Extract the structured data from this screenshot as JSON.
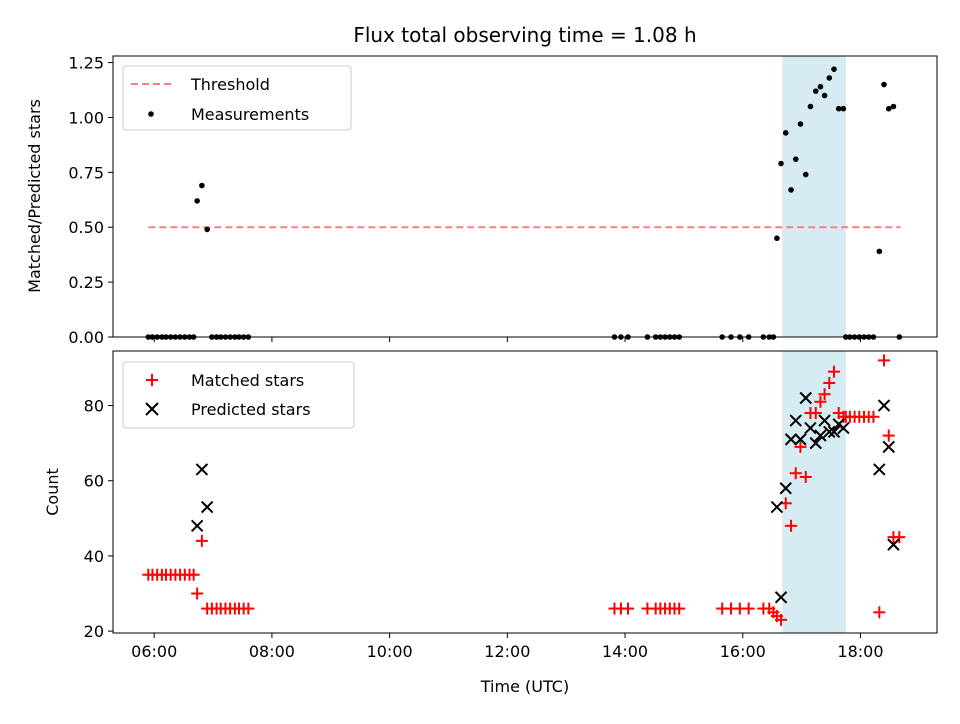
{
  "chart_data": [
    {
      "type": "scatter",
      "title": "Flux total observing time = 1.08 h",
      "xlabel": "",
      "ylabel": "Matched/Predicted stars",
      "ylim": [
        0,
        1.28
      ],
      "yticks": [
        "0.00",
        "0.25",
        "0.50",
        "0.75",
        "1.00",
        "1.25"
      ],
      "ytick_values": [
        0,
        0.25,
        0.5,
        0.75,
        1.0,
        1.25
      ],
      "legend_position": "upper-left",
      "highlight_span": {
        "start_hour": 16.67,
        "end_hour": 17.75,
        "color": "#add8e6"
      },
      "threshold": {
        "name": "Threshold",
        "value": 0.5,
        "x_start_hour": 5.9,
        "x_end_hour": 18.68,
        "color": "#ff7f7f",
        "style": "dashed"
      },
      "series": [
        {
          "name": "Measurements",
          "color": "#000000",
          "marker": "dot",
          "points": [
            [
              5.9,
              0
            ],
            [
              5.97,
              0
            ],
            [
              6.05,
              0
            ],
            [
              6.13,
              0
            ],
            [
              6.2,
              0
            ],
            [
              6.28,
              0
            ],
            [
              6.36,
              0
            ],
            [
              6.44,
              0
            ],
            [
              6.52,
              0
            ],
            [
              6.6,
              0
            ],
            [
              6.67,
              0
            ],
            [
              6.73,
              0.62
            ],
            [
              6.81,
              0.69
            ],
            [
              6.9,
              0.49
            ],
            [
              6.98,
              0
            ],
            [
              7.06,
              0
            ],
            [
              7.13,
              0
            ],
            [
              7.21,
              0
            ],
            [
              7.29,
              0
            ],
            [
              7.37,
              0
            ],
            [
              7.44,
              0
            ],
            [
              7.52,
              0
            ],
            [
              7.6,
              0
            ],
            [
              13.82,
              0
            ],
            [
              13.93,
              0
            ],
            [
              14.05,
              0
            ],
            [
              14.38,
              0
            ],
            [
              14.52,
              0
            ],
            [
              14.6,
              0
            ],
            [
              14.68,
              0
            ],
            [
              14.76,
              0
            ],
            [
              14.84,
              0
            ],
            [
              14.92,
              0
            ],
            [
              15.65,
              0
            ],
            [
              15.8,
              0
            ],
            [
              15.95,
              0
            ],
            [
              16.1,
              0
            ],
            [
              16.35,
              0
            ],
            [
              16.45,
              0
            ],
            [
              16.52,
              0
            ],
            [
              16.58,
              0.45
            ],
            [
              16.65,
              0.79
            ],
            [
              16.73,
              0.93
            ],
            [
              16.82,
              0.67
            ],
            [
              16.9,
              0.81
            ],
            [
              16.98,
              0.97
            ],
            [
              17.07,
              0.74
            ],
            [
              17.15,
              1.05
            ],
            [
              17.24,
              1.12
            ],
            [
              17.32,
              1.14
            ],
            [
              17.39,
              1.1
            ],
            [
              17.47,
              1.18
            ],
            [
              17.55,
              1.22
            ],
            [
              17.63,
              1.04
            ],
            [
              17.71,
              1.04
            ],
            [
              17.75,
              0
            ],
            [
              17.82,
              0
            ],
            [
              17.9,
              0
            ],
            [
              17.98,
              0
            ],
            [
              18.06,
              0
            ],
            [
              18.14,
              0
            ],
            [
              18.22,
              0
            ],
            [
              18.32,
              0.39
            ],
            [
              18.4,
              1.15
            ],
            [
              18.48,
              1.04
            ],
            [
              18.56,
              1.05
            ],
            [
              18.66,
              0
            ]
          ]
        }
      ]
    },
    {
      "type": "scatter",
      "title": "",
      "xlabel": "Time (UTC)",
      "ylabel": "Count",
      "ylim": [
        19.5,
        94.5
      ],
      "yticks": [
        "20",
        "40",
        "60",
        "80"
      ],
      "ytick_values": [
        20,
        40,
        60,
        80
      ],
      "xticks": [
        "06:00",
        "08:00",
        "10:00",
        "12:00",
        "14:00",
        "16:00",
        "18:00"
      ],
      "xtick_hours": [
        6,
        8,
        10,
        12,
        14,
        16,
        18
      ],
      "xlim_hours": [
        5.3,
        19.3
      ],
      "legend_position": "upper-left",
      "highlight_span": {
        "start_hour": 16.67,
        "end_hour": 17.75,
        "color": "#add8e6"
      },
      "series": [
        {
          "name": "Matched stars",
          "color": "#ff0000",
          "marker": "plus",
          "points": [
            [
              5.9,
              35
            ],
            [
              5.97,
              35
            ],
            [
              6.05,
              35
            ],
            [
              6.13,
              35
            ],
            [
              6.2,
              35
            ],
            [
              6.28,
              35
            ],
            [
              6.36,
              35
            ],
            [
              6.44,
              35
            ],
            [
              6.52,
              35
            ],
            [
              6.6,
              35
            ],
            [
              6.67,
              35
            ],
            [
              6.73,
              30
            ],
            [
              6.81,
              44
            ],
            [
              6.9,
              26
            ],
            [
              6.98,
              26
            ],
            [
              7.06,
              26
            ],
            [
              7.13,
              26
            ],
            [
              7.21,
              26
            ],
            [
              7.29,
              26
            ],
            [
              7.37,
              26
            ],
            [
              7.44,
              26
            ],
            [
              7.52,
              26
            ],
            [
              7.6,
              26
            ],
            [
              13.82,
              26
            ],
            [
              13.93,
              26
            ],
            [
              14.05,
              26
            ],
            [
              14.38,
              26
            ],
            [
              14.52,
              26
            ],
            [
              14.6,
              26
            ],
            [
              14.68,
              26
            ],
            [
              14.76,
              26
            ],
            [
              14.84,
              26
            ],
            [
              14.92,
              26
            ],
            [
              15.65,
              26
            ],
            [
              15.8,
              26
            ],
            [
              15.95,
              26
            ],
            [
              16.1,
              26
            ],
            [
              16.35,
              26
            ],
            [
              16.45,
              26
            ],
            [
              16.52,
              25
            ],
            [
              16.58,
              24
            ],
            [
              16.65,
              23
            ],
            [
              16.73,
              54
            ],
            [
              16.82,
              48
            ],
            [
              16.9,
              62
            ],
            [
              16.98,
              69
            ],
            [
              17.07,
              61
            ],
            [
              17.15,
              78
            ],
            [
              17.24,
              78
            ],
            [
              17.32,
              81
            ],
            [
              17.39,
              83
            ],
            [
              17.47,
              86
            ],
            [
              17.55,
              89
            ],
            [
              17.63,
              78
            ],
            [
              17.71,
              77
            ],
            [
              17.75,
              77
            ],
            [
              17.82,
              77
            ],
            [
              17.9,
              77
            ],
            [
              17.98,
              77
            ],
            [
              18.06,
              77
            ],
            [
              18.14,
              77
            ],
            [
              18.22,
              77
            ],
            [
              18.32,
              25
            ],
            [
              18.4,
              92
            ],
            [
              18.48,
              72
            ],
            [
              18.56,
              45
            ],
            [
              18.66,
              45
            ]
          ]
        },
        {
          "name": "Predicted stars",
          "color": "#000000",
          "marker": "x",
          "points": [
            [
              6.73,
              48
            ],
            [
              6.81,
              63
            ],
            [
              6.9,
              53
            ],
            [
              16.58,
              53
            ],
            [
              16.65,
              29
            ],
            [
              16.73,
              58
            ],
            [
              16.82,
              71
            ],
            [
              16.9,
              76
            ],
            [
              16.98,
              71
            ],
            [
              17.07,
              82
            ],
            [
              17.15,
              74
            ],
            [
              17.24,
              70
            ],
            [
              17.32,
              72
            ],
            [
              17.39,
              76
            ],
            [
              17.47,
              73
            ],
            [
              17.55,
              73
            ],
            [
              17.63,
              75
            ],
            [
              17.71,
              74
            ],
            [
              18.32,
              63
            ],
            [
              18.4,
              80
            ],
            [
              18.48,
              69
            ],
            [
              18.56,
              43
            ]
          ]
        }
      ]
    }
  ]
}
